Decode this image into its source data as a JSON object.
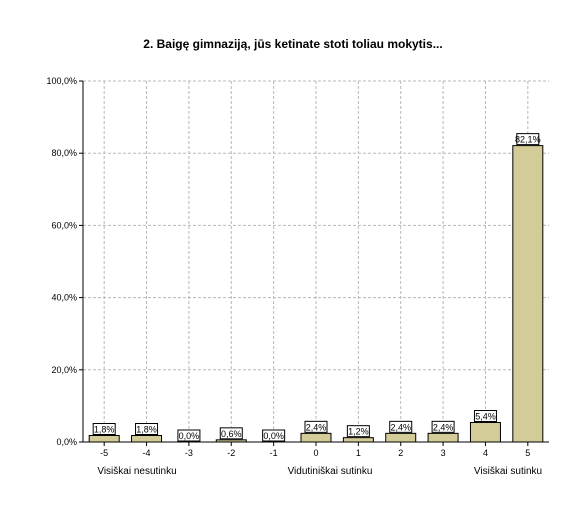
{
  "chart_data": {
    "type": "bar",
    "title": "2. Baigę gimnaziją, jūs ketinate stoti toliau mokytis...",
    "xlabel": "",
    "ylabel": "",
    "categories": [
      "-5",
      "-4",
      "-3",
      "-2",
      "-1",
      "0",
      "1",
      "2",
      "3",
      "4",
      "5"
    ],
    "values": [
      1.8,
      1.8,
      0.0,
      0.6,
      0.0,
      2.4,
      1.2,
      2.4,
      2.4,
      5.4,
      82.1
    ],
    "data_labels": [
      "1,8%",
      "1,8%",
      "0,0%",
      "0,6%",
      "0,0%",
      "2,4%",
      "1,2%",
      "2,4%",
      "2,4%",
      "5,4%",
      "82,1%"
    ],
    "ylim": [
      0,
      100
    ],
    "y_ticks": [
      0,
      20,
      40,
      60,
      80,
      100
    ],
    "y_tick_labels": [
      "0,0%",
      "20,0%",
      "40,0%",
      "60,0%",
      "80,0%",
      "100,0%"
    ],
    "anchor_labels": {
      "left": "Visiškai nesutinku",
      "middle": "Vidutiniškai sutinku",
      "right": "Visiškai sutinku"
    },
    "grid": true,
    "colors": {
      "bar_fill": "#d4cc98",
      "bar_stroke": "#000000",
      "grid": "#b8b8b8",
      "plot_bg": "#ffffff"
    }
  }
}
